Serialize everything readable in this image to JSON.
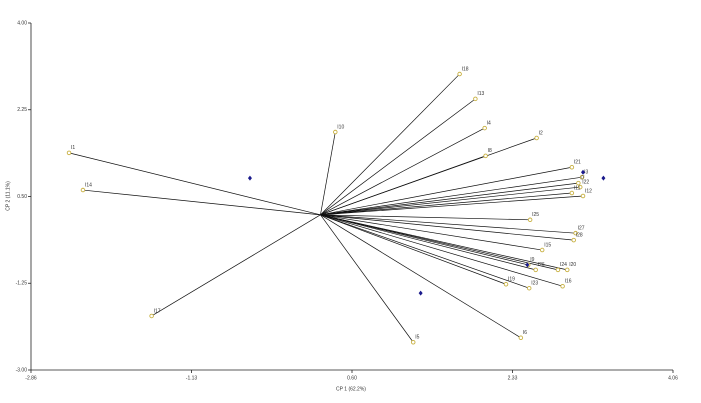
{
  "chart_data": {
    "type": "biplot",
    "xlabel": "CP 1 (62.2%)",
    "ylabel": "CP 2 (11.1%)",
    "xlim": [
      -2.86,
      4.06
    ],
    "ylim": [
      -3.0,
      4.0
    ],
    "xticks": [
      {
        "value": -2.86,
        "label": "-2.86"
      },
      {
        "value": -1.13,
        "label": "-1.13"
      },
      {
        "value": 0.6,
        "label": "0.60"
      },
      {
        "value": 2.33,
        "label": "2.33"
      },
      {
        "value": 4.06,
        "label": "4.06"
      }
    ],
    "yticks": [
      {
        "value": -3,
        "label": "-3.00"
      },
      {
        "value": -1.25,
        "label": "-1.25"
      },
      {
        "value": 0.5,
        "label": "0.50"
      },
      {
        "value": 2.25,
        "label": "2.25"
      },
      {
        "value": 4,
        "label": "4.00"
      }
    ],
    "origin": {
      "x": 0.26,
      "y": 0.13
    },
    "vectors": {
      "color": "#c8b040",
      "labels": [
        "I1",
        "I14",
        "I17",
        "I10",
        "I18",
        "I13",
        "I4",
        "I8",
        "I2",
        "I21",
        "I3",
        "I7",
        "I22",
        "I11",
        "I12",
        "I25",
        "I27",
        "I28",
        "I15",
        "I9",
        "I26",
        "I24",
        "I20",
        "I19",
        "I16",
        "I23",
        "I6",
        "I5"
      ],
      "x": [
        -2.45,
        -2.3,
        -1.56,
        0.42,
        1.76,
        1.93,
        2.03,
        2.04,
        2.59,
        2.97,
        3.08,
        3.04,
        3.06,
        2.97,
        3.09,
        2.52,
        3.01,
        2.99,
        2.65,
        2.5,
        2.58,
        2.82,
        2.92,
        2.26,
        2.87,
        2.51,
        2.42,
        1.26
      ],
      "y": [
        1.38,
        0.63,
        -1.91,
        1.8,
        2.97,
        2.47,
        1.88,
        1.32,
        1.68,
        1.09,
        0.89,
        0.77,
        0.69,
        0.57,
        0.51,
        0.03,
        -0.24,
        -0.38,
        -0.58,
        -0.88,
        -0.98,
        -0.98,
        -0.98,
        -1.27,
        -1.31,
        -1.35,
        -2.35,
        -2.44
      ]
    },
    "scores": {
      "color": "#1a1a8c",
      "x": [
        -0.5,
        3.09,
        3.31,
        2.49,
        1.34
      ],
      "y": [
        0.87,
        0.99,
        0.87,
        -0.88,
        -1.45
      ]
    }
  }
}
